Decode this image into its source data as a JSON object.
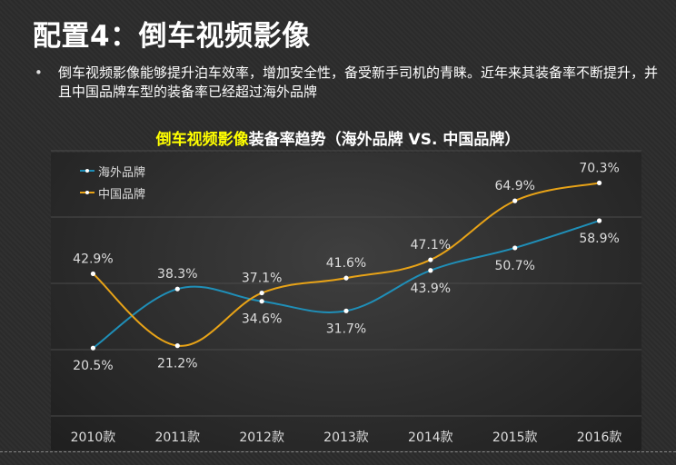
{
  "header": {
    "title": "配置4：倒车视频影像"
  },
  "intro": {
    "bullet_symbol": "•",
    "text": "倒车视频影像能够提升泊车效率，增加安全性，备受新手司机的青睐。近年来其装备率不断提升，并且中国品牌车型的装备率已经超过海外品牌"
  },
  "chart_data": {
    "type": "line",
    "title_highlight": "倒车视频影像",
    "title_rest": "装备率趋势（海外品牌 VS. 中国品牌）",
    "categories": [
      "2010款",
      "2011款",
      "2012款",
      "2013款",
      "2014款",
      "2015款",
      "2016款"
    ],
    "series": [
      {
        "name": "海外品牌",
        "color": "#1f8fb8",
        "values": [
          20.5,
          38.3,
          34.6,
          31.7,
          43.9,
          50.7,
          58.9
        ],
        "labels": [
          "20.5%",
          "38.3%",
          "34.6%",
          "31.7%",
          "43.9%",
          "50.7%",
          "58.9%"
        ]
      },
      {
        "name": "中国品牌",
        "color": "#e8a317",
        "values": [
          42.9,
          21.2,
          37.1,
          41.6,
          47.1,
          64.9,
          70.3
        ],
        "labels": [
          "42.9%",
          "21.2%",
          "37.1%",
          "41.6%",
          "47.1%",
          "64.9%",
          "70.3%"
        ]
      }
    ],
    "ylim": [
      0,
      80
    ],
    "grid": true,
    "legend_position": "top-left",
    "xlabel": "",
    "ylabel": ""
  }
}
